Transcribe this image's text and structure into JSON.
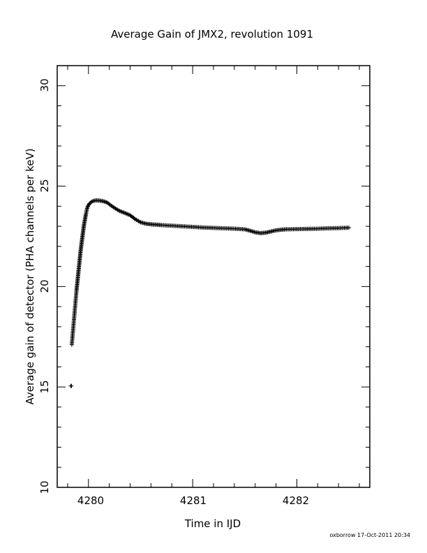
{
  "chart_data": {
    "type": "scatter",
    "title": "Average Gain of JMX2, revolution 1091",
    "xlabel": "Time in IJD",
    "ylabel": "Average gain of detector (PHA channels per keV)",
    "xlim": [
      4279.7,
      4282.7
    ],
    "ylim": [
      10,
      31
    ],
    "x_ticks": [
      "4280",
      "4281",
      "4282"
    ],
    "y_ticks": [
      "10",
      "15",
      "20",
      "25",
      "30"
    ],
    "grid": false,
    "marker": "+",
    "series": [
      {
        "x": [
          4279.83,
          4279.84,
          4279.845,
          4279.85,
          4279.855,
          4279.86,
          4279.865,
          4279.87,
          4279.875,
          4279.88,
          4279.885,
          4279.89,
          4279.895,
          4279.9,
          4279.905,
          4279.91,
          4279.915,
          4279.92,
          4279.925,
          4279.93,
          4279.935,
          4279.94,
          4279.945,
          4279.95,
          4279.955,
          4279.96,
          4279.965,
          4279.97,
          4279.975,
          4279.98,
          4279.985,
          4279.99,
          4280.0,
          4280.01,
          4280.02,
          4280.03,
          4280.04,
          4280.05,
          4280.06,
          4280.08,
          4280.1,
          4280.12,
          4280.14,
          4280.16,
          4280.18,
          4280.2,
          4280.22,
          4280.24,
          4280.26,
          4280.28,
          4280.3,
          4280.33,
          4280.36,
          4280.4,
          4280.45,
          4280.5,
          4280.55,
          4280.6,
          4280.65,
          4280.7,
          4280.8,
          4280.9,
          4281.0,
          4281.1,
          4281.2,
          4281.3,
          4281.4,
          4281.5,
          4281.55,
          4281.6,
          4281.65,
          4281.7,
          4281.75,
          4281.8,
          4281.85,
          4281.9,
          4282.0,
          4282.1,
          4282.2,
          4282.3,
          4282.4,
          4282.5
        ],
        "y": [
          15.05,
          17.1,
          17.4,
          17.7,
          18.0,
          18.3,
          18.6,
          18.9,
          19.2,
          19.5,
          19.8,
          20.05,
          20.3,
          20.55,
          20.8,
          21.05,
          21.3,
          21.55,
          21.8,
          22.0,
          22.2,
          22.4,
          22.6,
          22.8,
          23.0,
          23.15,
          23.3,
          23.45,
          23.6,
          23.72,
          23.84,
          23.95,
          24.05,
          24.13,
          24.18,
          24.22,
          24.25,
          24.27,
          24.28,
          24.29,
          24.28,
          24.27,
          24.25,
          24.22,
          24.18,
          24.1,
          24.02,
          23.95,
          23.88,
          23.82,
          23.76,
          23.7,
          23.64,
          23.55,
          23.35,
          23.2,
          23.13,
          23.1,
          23.08,
          23.06,
          23.03,
          23.0,
          22.97,
          22.94,
          22.92,
          22.9,
          22.88,
          22.85,
          22.78,
          22.7,
          22.66,
          22.68,
          22.74,
          22.8,
          22.83,
          22.85,
          22.86,
          22.87,
          22.88,
          22.9,
          22.91,
          22.93
        ]
      }
    ]
  },
  "footer": {
    "credit": "oxborrow 17-Oct-2011 20:34"
  }
}
